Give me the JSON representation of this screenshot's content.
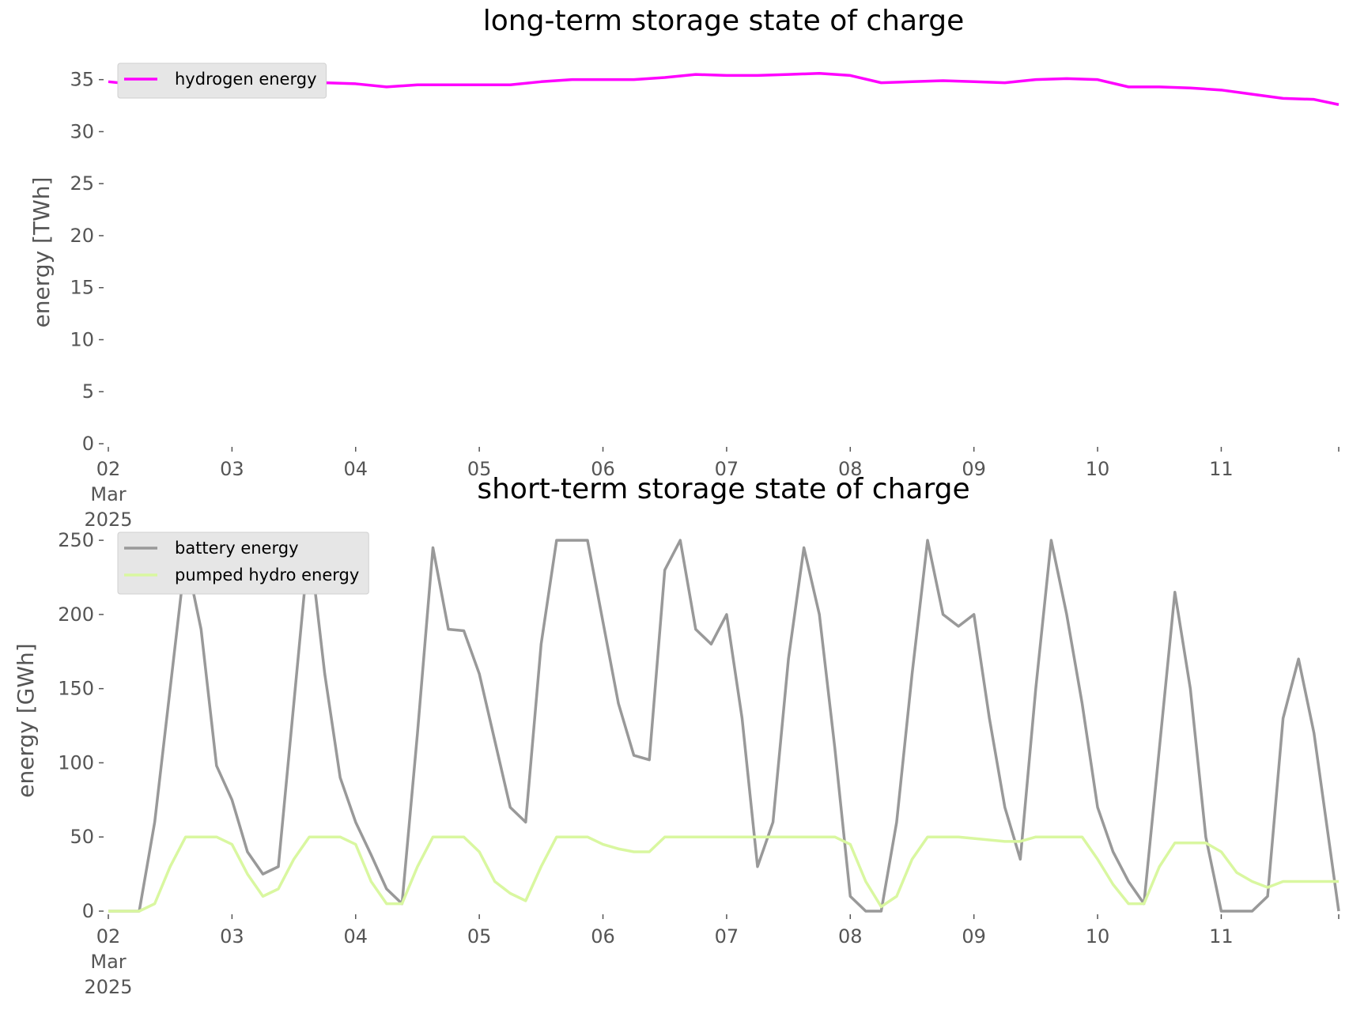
{
  "chart_data": [
    {
      "type": "line",
      "title": "long-term storage state of charge",
      "ylabel": "energy [TWh]",
      "x": [
        0,
        0.25,
        0.5,
        0.75,
        1,
        1.25,
        1.5,
        1.75,
        2,
        2.25,
        2.5,
        2.75,
        3,
        3.25,
        3.5,
        3.75,
        4,
        4.25,
        4.5,
        4.75,
        5,
        5.25,
        5.5,
        5.75,
        6,
        6.25,
        6.5,
        6.75,
        7,
        7.25,
        7.5,
        7.75,
        8,
        8.25,
        8.5,
        8.75,
        9,
        9.25,
        9.5,
        9.75,
        9.95
      ],
      "series": [
        {
          "name": "hydrogen energy",
          "color": "#ff00ff",
          "values": [
            34.8,
            34.5,
            34.6,
            34.9,
            34.7,
            34.5,
            34.6,
            34.7,
            34.6,
            34.3,
            34.5,
            34.5,
            34.5,
            34.5,
            34.8,
            35.0,
            35.0,
            35.0,
            35.2,
            35.5,
            35.4,
            35.4,
            35.5,
            35.6,
            35.4,
            34.7,
            34.8,
            34.9,
            34.8,
            34.7,
            35.0,
            35.1,
            35.0,
            34.3,
            34.3,
            34.2,
            34.0,
            33.6,
            33.2,
            33.1,
            32.6
          ]
        }
      ],
      "xlim": [
        0,
        9.95
      ],
      "xticks": [
        {
          "value": 0,
          "label": "02\nMar\n2025"
        },
        {
          "value": 1,
          "label": "03"
        },
        {
          "value": 2,
          "label": "04"
        },
        {
          "value": 3,
          "label": "05"
        },
        {
          "value": 4,
          "label": "06"
        },
        {
          "value": 5,
          "label": "07"
        },
        {
          "value": 6,
          "label": "08"
        },
        {
          "value": 7,
          "label": "09"
        },
        {
          "value": 8,
          "label": "10"
        },
        {
          "value": 9,
          "label": "11"
        }
      ],
      "ylim": [
        0,
        36.8
      ],
      "yticks": [
        0,
        5,
        10,
        15,
        20,
        25,
        30,
        35
      ],
      "grid": false,
      "legend": "upper left"
    },
    {
      "type": "line",
      "title": "short-term storage state of charge",
      "ylabel": "energy [GWh]",
      "x": [
        0,
        0.125,
        0.25,
        0.375,
        0.5,
        0.625,
        0.75,
        0.875,
        1,
        1.125,
        1.25,
        1.375,
        1.5,
        1.625,
        1.75,
        1.875,
        2,
        2.125,
        2.25,
        2.375,
        2.5,
        2.625,
        2.75,
        2.875,
        3,
        3.125,
        3.25,
        3.375,
        3.5,
        3.625,
        3.75,
        3.875,
        4,
        4.125,
        4.25,
        4.375,
        4.5,
        4.625,
        4.75,
        4.875,
        5,
        5.125,
        5.25,
        5.375,
        5.5,
        5.625,
        5.75,
        5.875,
        6,
        6.125,
        6.25,
        6.375,
        6.5,
        6.625,
        6.75,
        6.875,
        7,
        7.125,
        7.25,
        7.375,
        7.5,
        7.625,
        7.75,
        7.875,
        8,
        8.125,
        8.25,
        8.375,
        8.5,
        8.625,
        8.75,
        8.875,
        9,
        9.125,
        9.25,
        9.375,
        9.5,
        9.625,
        9.75,
        9.875,
        9.95
      ],
      "series": [
        {
          "name": "battery energy",
          "color": "#999999",
          "values": [
            0,
            0,
            0,
            60,
            150,
            240,
            190,
            98,
            75,
            40,
            25,
            30,
            140,
            250,
            160,
            90,
            60,
            38,
            15,
            5,
            120,
            245,
            190,
            189,
            160,
            115,
            70,
            60,
            180,
            250,
            250,
            250,
            195,
            140,
            105,
            102,
            230,
            250,
            190,
            180,
            200,
            130,
            30,
            60,
            170,
            245,
            200,
            110,
            10,
            0,
            0,
            60,
            160,
            250,
            200,
            192,
            200,
            130,
            70,
            35,
            150,
            250,
            200,
            140,
            70,
            40,
            20,
            5,
            110,
            215,
            150,
            50,
            0,
            0,
            0,
            10,
            130,
            170,
            120,
            45,
            0
          ]
        },
        {
          "name": "pumped hydro energy",
          "color": "#d9f7a0",
          "values": [
            0,
            0,
            0,
            5,
            30,
            50,
            50,
            50,
            45,
            25,
            10,
            15,
            35,
            50,
            50,
            50,
            45,
            20,
            5,
            5,
            30,
            50,
            50,
            50,
            40,
            20,
            12,
            7,
            30,
            50,
            50,
            50,
            45,
            42,
            40,
            40,
            50,
            50,
            50,
            50,
            50,
            50,
            50,
            50,
            50,
            50,
            50,
            50,
            45,
            20,
            3,
            10,
            35,
            50,
            50,
            50,
            49,
            48,
            47,
            47,
            50,
            50,
            50,
            50,
            35,
            18,
            5,
            5,
            30,
            46,
            46,
            46,
            40,
            26,
            20,
            16,
            20,
            20,
            20,
            20,
            20
          ]
        }
      ],
      "xlim": [
        0,
        9.95
      ],
      "xticks": [
        {
          "value": 0,
          "label": "02\nMar\n2025"
        },
        {
          "value": 1,
          "label": "03"
        },
        {
          "value": 2,
          "label": "04"
        },
        {
          "value": 3,
          "label": "05"
        },
        {
          "value": 4,
          "label": "06"
        },
        {
          "value": 5,
          "label": "07"
        },
        {
          "value": 6,
          "label": "08"
        },
        {
          "value": 7,
          "label": "09"
        },
        {
          "value": 8,
          "label": "10"
        },
        {
          "value": 9,
          "label": "11"
        }
      ],
      "ylim": [
        0,
        257
      ],
      "yticks": [
        0,
        50,
        100,
        150,
        200,
        250
      ],
      "grid": false,
      "legend": "upper left"
    }
  ]
}
